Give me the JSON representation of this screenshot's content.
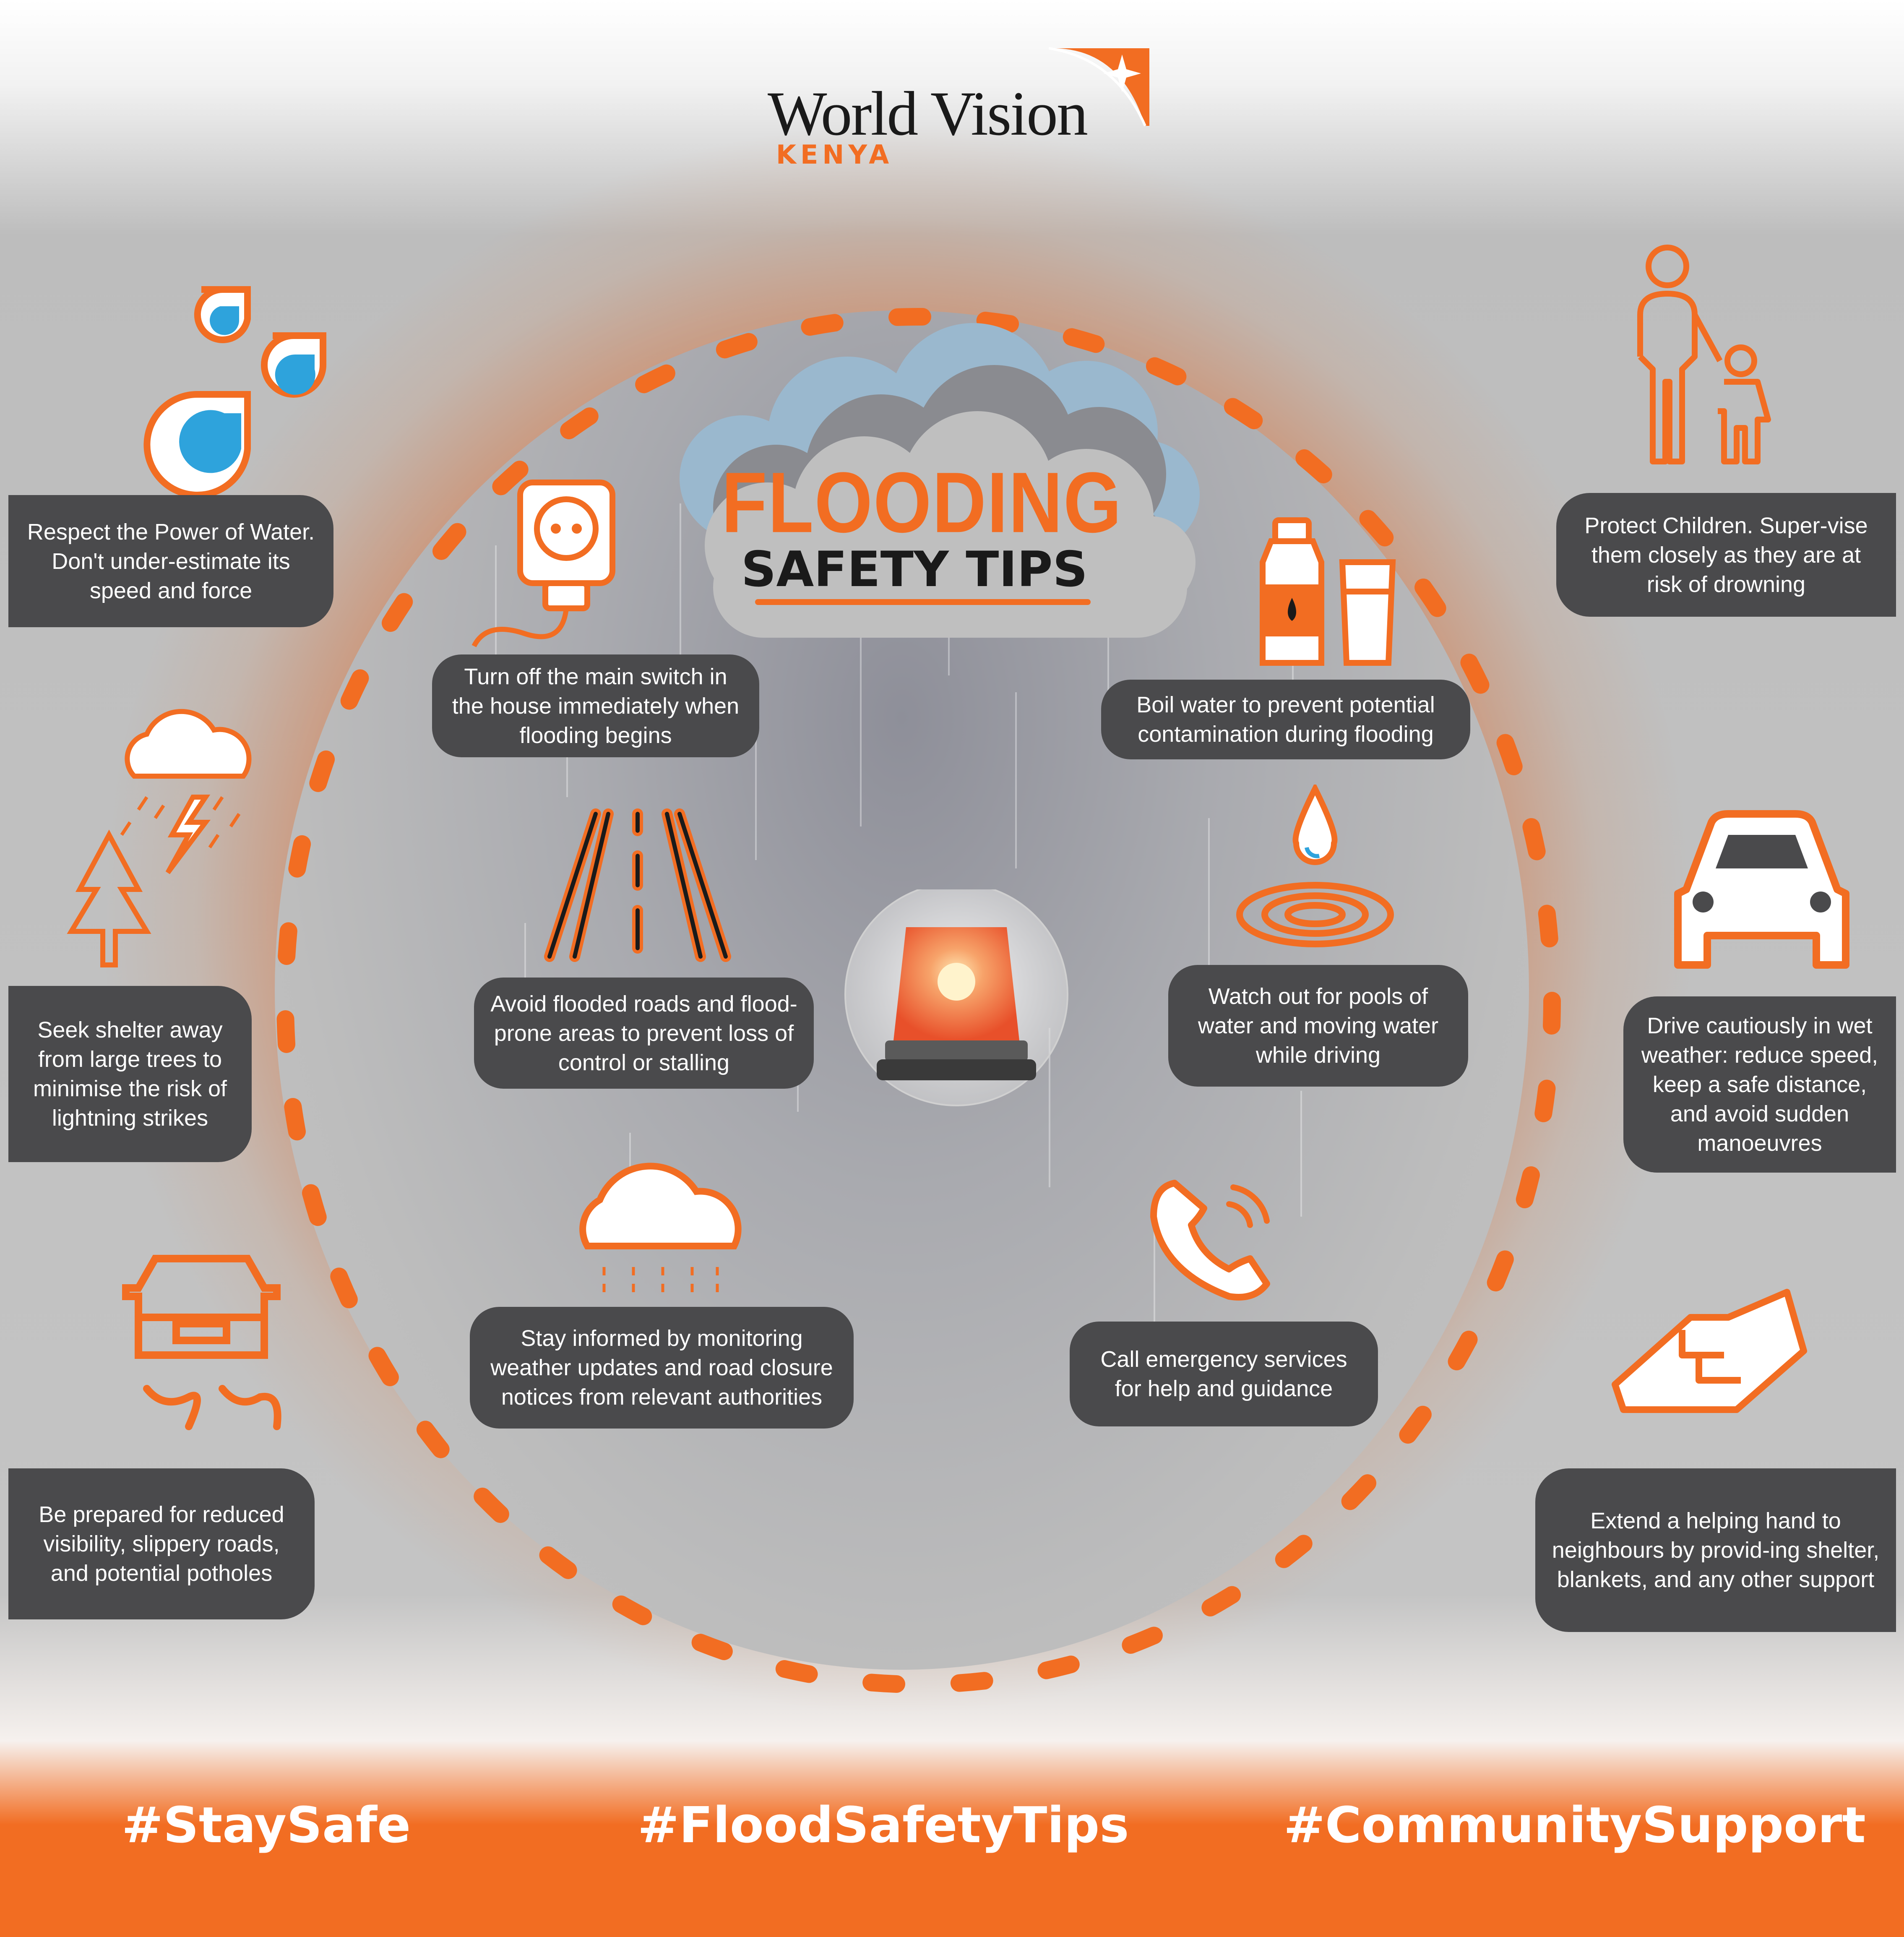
{
  "brand": {
    "name": "World Vision",
    "region": "KENYA",
    "orange": "#f26d22",
    "dark": "#4a4a4c"
  },
  "title": {
    "line1": "FLOODING",
    "line2": "SAFETY TIPS"
  },
  "tips": {
    "respect_water": "Respect the Power of Water. Don't under-estimate its speed and force",
    "main_switch": "Turn off the main switch in the house immediately when flooding begins",
    "boil_water": "Boil water to prevent potential contamination during flooding",
    "protect_children": "Protect Children. Super-vise them closely as they are at risk of drowning",
    "seek_shelter": "Seek shelter away from large trees to minimise the risk of lightning strikes",
    "avoid_roads": "Avoid flooded roads and flood-prone areas to prevent loss of control or stalling",
    "pools_water": "Watch out for pools of water and moving water while driving",
    "drive_cautiously": "Drive cautiously in wet weather: reduce speed, keep a safe distance, and avoid sudden manoeuvres",
    "stay_informed": "Stay informed by monitoring weather updates and road closure notices from relevant authorities",
    "call_emergency": "Call emergency services for help and guidance",
    "be_prepared": "Be prepared for reduced visibility, slippery roads, and potential potholes",
    "helping_hand": "Extend a helping hand to neighbours by provid-ing shelter, blankets, and any other support"
  },
  "icons": {
    "respect_water": "water-drops-icon",
    "main_switch": "power-socket-plug-icon",
    "boil_water": "water-bottle-glass-icon",
    "protect_children": "parent-child-icon",
    "seek_shelter": "storm-tree-icon",
    "avoid_roads": "road-icon",
    "pools_water": "water-puddle-icon",
    "drive_cautiously": "car-icon",
    "stay_informed": "rain-cloud-icon",
    "call_emergency": "phone-icon",
    "be_prepared": "skidding-car-icon",
    "helping_hand": "handshake-icon",
    "center": "emergency-siren-icon"
  },
  "hashtags": {
    "stay_safe": "#StaySafe",
    "flood_tips": "#FloodSafetyTips",
    "community": "#CommunitySupport"
  }
}
